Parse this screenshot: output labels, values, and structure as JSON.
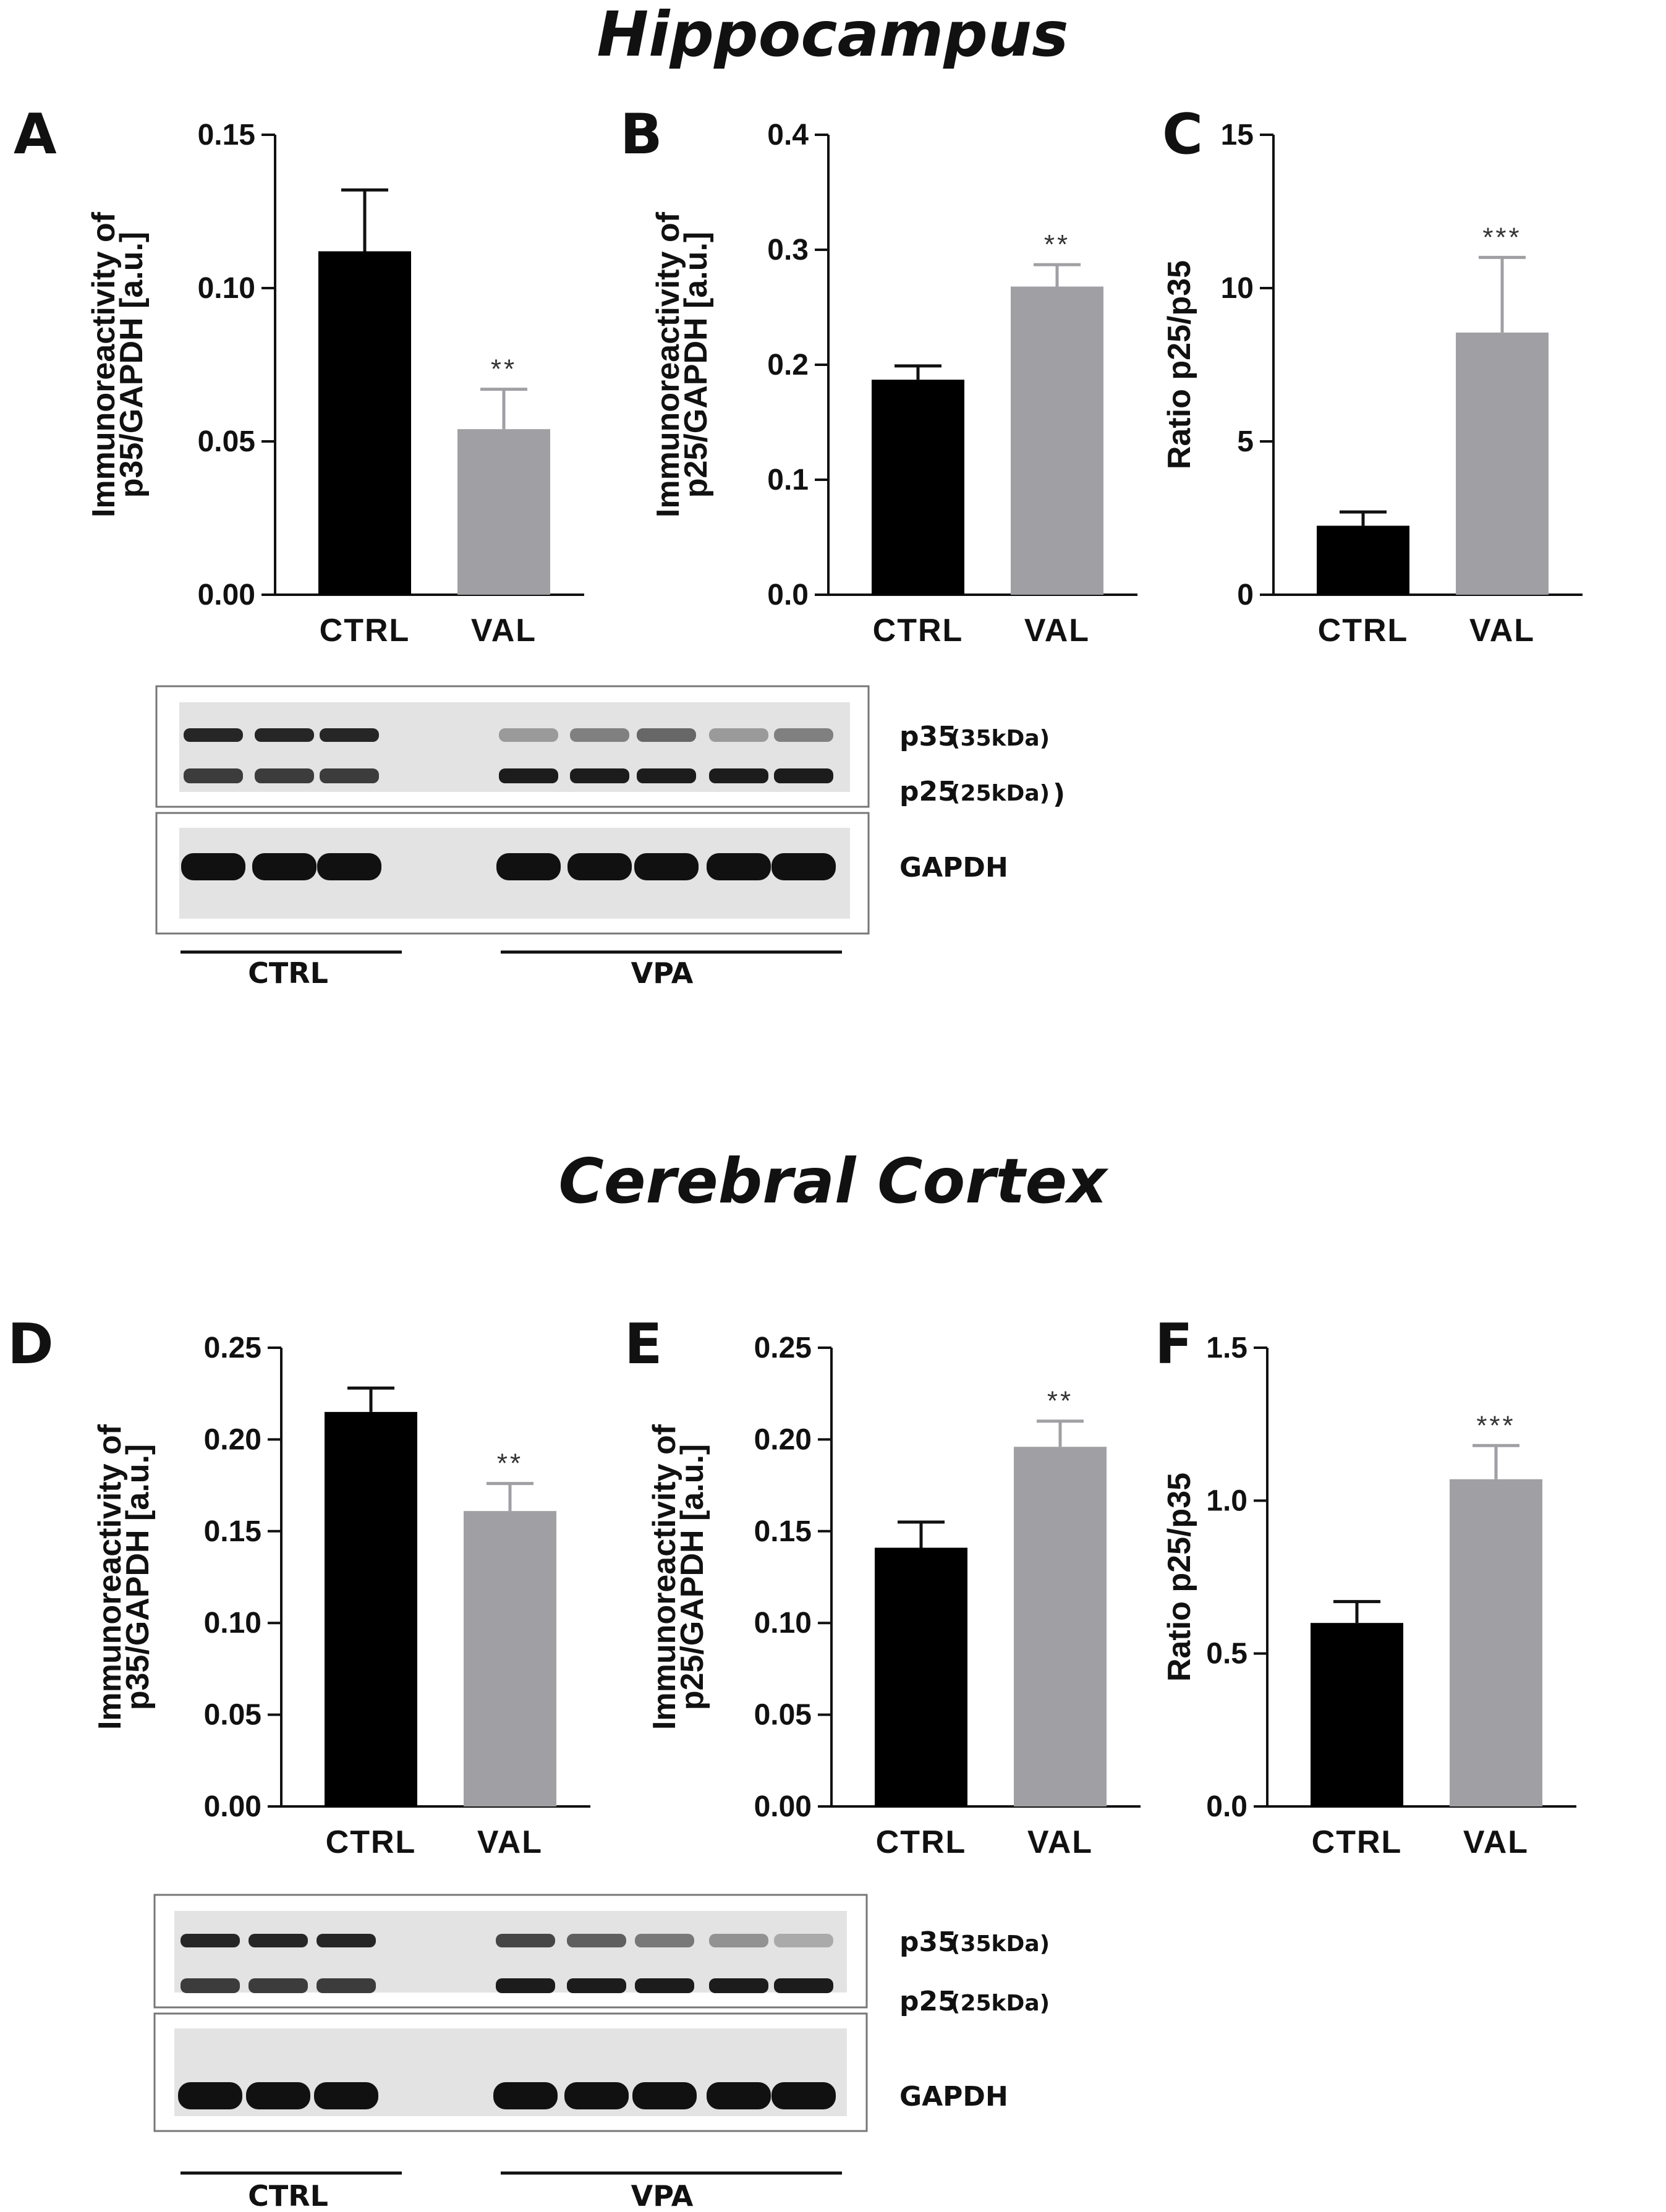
{
  "sections": {
    "top_title": "Hippocampus",
    "bottom_title": "Cerebral Cortex"
  },
  "chart_data": [
    {
      "panel": "A",
      "type": "bar",
      "ylabel": [
        "Immunoreactivity of",
        "p35/GAPDH [a.u.]"
      ],
      "categories": [
        "CTRL",
        "VAL"
      ],
      "values": [
        0.112,
        0.054
      ],
      "errors": [
        0.02,
        0.013
      ],
      "significance": [
        "",
        "**"
      ],
      "colors": [
        "#000000",
        "#a0a0a4"
      ],
      "ylim": [
        0,
        0.15
      ],
      "yticks": [
        0.0,
        0.05,
        0.1,
        0.15
      ],
      "ytick_labels": [
        "0.00",
        "0.05",
        "0.10",
        "0.15"
      ]
    },
    {
      "panel": "B",
      "type": "bar",
      "ylabel": [
        "Immunoreactivity of",
        "p25/GAPDH [a.u.]"
      ],
      "categories": [
        "CTRL",
        "VAL"
      ],
      "values": [
        0.187,
        0.268
      ],
      "errors": [
        0.012,
        0.019
      ],
      "significance": [
        "",
        "**"
      ],
      "colors": [
        "#000000",
        "#a0a0a4"
      ],
      "ylim": [
        0,
        0.4
      ],
      "yticks": [
        0.0,
        0.1,
        0.2,
        0.3,
        0.4
      ],
      "ytick_labels": [
        "0.0",
        "0.1",
        "0.2",
        "0.3",
        "0.4"
      ]
    },
    {
      "panel": "C",
      "type": "bar",
      "ylabel": [
        "Ratio p25/p35"
      ],
      "categories": [
        "CTRL",
        "VAL"
      ],
      "values": [
        2.25,
        8.55
      ],
      "errors": [
        0.45,
        2.45
      ],
      "significance": [
        "",
        "***"
      ],
      "colors": [
        "#000000",
        "#a0a0a4"
      ],
      "ylim": [
        0,
        15
      ],
      "yticks": [
        0,
        5,
        10,
        15
      ],
      "ytick_labels": [
        "0",
        "5",
        "10",
        "15"
      ]
    },
    {
      "panel": "D",
      "type": "bar",
      "ylabel": [
        "Immunoreactivity of",
        "p35/GAPDH [a.u.]"
      ],
      "categories": [
        "CTRL",
        "VAL"
      ],
      "values": [
        0.215,
        0.161
      ],
      "errors": [
        0.013,
        0.015
      ],
      "significance": [
        "",
        "**"
      ],
      "colors": [
        "#000000",
        "#a0a0a4"
      ],
      "ylim": [
        0,
        0.25
      ],
      "yticks": [
        0.0,
        0.05,
        0.1,
        0.15,
        0.2,
        0.25
      ],
      "ytick_labels": [
        "0.00",
        "0.05",
        "0.10",
        "0.15",
        "0.20",
        "0.25"
      ]
    },
    {
      "panel": "E",
      "type": "bar",
      "ylabel": [
        "Immunoreactivity of",
        "p25/GAPDH [a.u.]"
      ],
      "categories": [
        "CTRL",
        "VAL"
      ],
      "values": [
        0.141,
        0.196
      ],
      "errors": [
        0.014,
        0.014
      ],
      "significance": [
        "",
        "**"
      ],
      "colors": [
        "#000000",
        "#a0a0a4"
      ],
      "ylim": [
        0,
        0.25
      ],
      "yticks": [
        0.0,
        0.05,
        0.1,
        0.15,
        0.2,
        0.25
      ],
      "ytick_labels": [
        "0.00",
        "0.05",
        "0.10",
        "0.15",
        "0.20",
        "0.25"
      ]
    },
    {
      "panel": "F",
      "type": "bar",
      "ylabel": [
        "Ratio p25/p35"
      ],
      "categories": [
        "CTRL",
        "VAL"
      ],
      "values": [
        0.6,
        1.07
      ],
      "errors": [
        0.07,
        0.11
      ],
      "significance": [
        "",
        "***"
      ],
      "colors": [
        "#000000",
        "#a0a0a4"
      ],
      "ylim": [
        0,
        1.5
      ],
      "yticks": [
        0.0,
        0.5,
        1.0,
        1.5
      ],
      "ytick_labels": [
        "0.0",
        "0.5",
        "1.0",
        "1.5"
      ]
    }
  ],
  "blots": [
    {
      "name": "hippocampus-blot",
      "bands": {
        "p35": "p35",
        "p35_kda": "(35kDa)",
        "p25": "p25",
        "p25_kda": "(25kDa)",
        "close_paren": ")",
        "gapdh": "GAPDH"
      },
      "groups": {
        "ctrl": "CTRL",
        "vpa": "VPA"
      },
      "lanes_ctrl": 3,
      "lanes_vpa": 5
    },
    {
      "name": "cortex-blot",
      "bands": {
        "p35": "p35",
        "p35_kda": "(35kDa)",
        "p25": "p25",
        "p25_kda": "(25kDa)",
        "close_paren": "",
        "gapdh": "GAPDH"
      },
      "groups": {
        "ctrl": "CTRL",
        "vpa": "VPA"
      },
      "lanes_ctrl": 3,
      "lanes_vpa": 5
    }
  ]
}
